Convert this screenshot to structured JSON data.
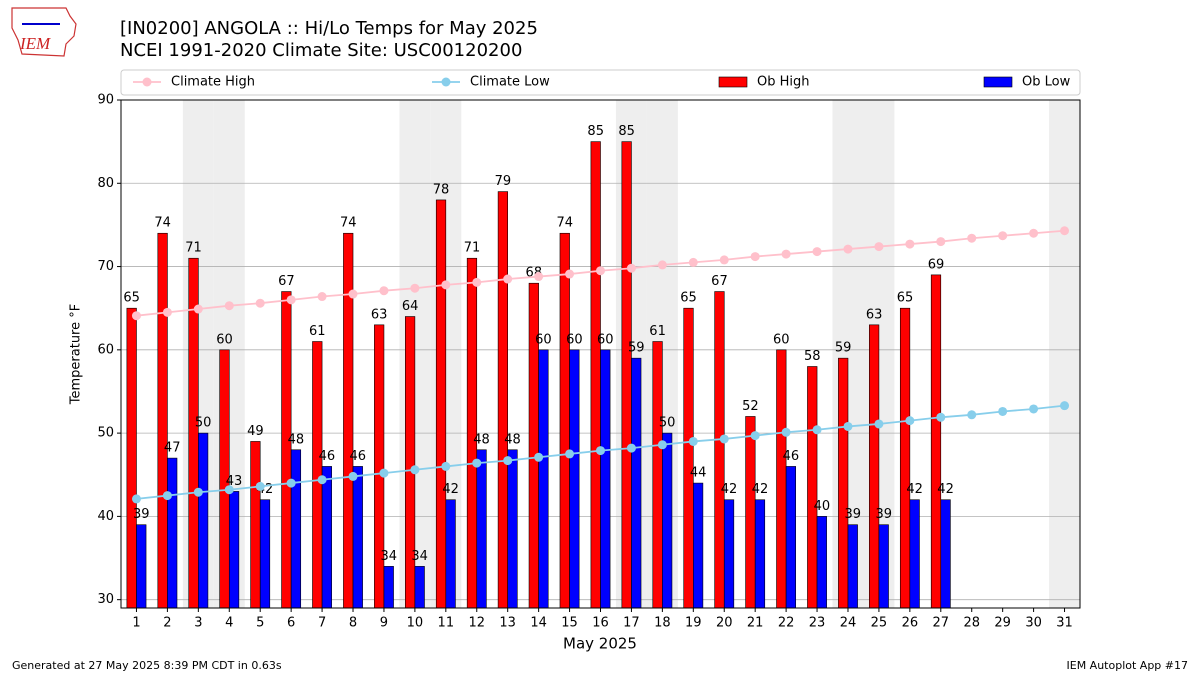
{
  "logo_text": "IEM",
  "footer_left": "Generated at 27 May 2025 8:39 PM CDT in 0.63s",
  "footer_right": "IEM Autoplot App #17",
  "chart_data": {
    "type": "bar",
    "title": "[IN0200] ANGOLA :: Hi/Lo Temps for May 2025",
    "subtitle": "NCEI 1991-2020 Climate Site: USC00120200",
    "x_label": "May 2025",
    "y_label": "Temperature °F",
    "x": [
      1,
      2,
      3,
      4,
      5,
      6,
      7,
      8,
      9,
      10,
      11,
      12,
      13,
      14,
      15,
      16,
      17,
      18,
      19,
      20,
      21,
      22,
      23,
      24,
      25,
      26,
      27,
      28,
      29,
      30,
      31
    ],
    "xlim": [
      0.5,
      31.5
    ],
    "xticks": [
      1,
      2,
      3,
      4,
      5,
      6,
      7,
      8,
      9,
      10,
      11,
      12,
      13,
      14,
      15,
      16,
      17,
      18,
      19,
      20,
      21,
      22,
      23,
      24,
      25,
      26,
      27,
      28,
      29,
      30,
      31
    ],
    "ylim": [
      29,
      90
    ],
    "yticks": [
      30,
      40,
      50,
      60,
      70,
      80,
      90
    ],
    "grid": true,
    "shaded_days": [
      3,
      4,
      10,
      11,
      17,
      18,
      24,
      25,
      31
    ],
    "series": [
      {
        "name": "Climate High",
        "type": "line",
        "color": "#ffc0cb",
        "values": [
          64.1,
          64.5,
          64.9,
          65.3,
          65.6,
          66.0,
          66.4,
          66.7,
          67.1,
          67.4,
          67.8,
          68.1,
          68.5,
          68.8,
          69.1,
          69.5,
          69.8,
          70.2,
          70.5,
          70.8,
          71.2,
          71.5,
          71.8,
          72.1,
          72.4,
          72.7,
          73.0,
          73.4,
          73.7,
          74.0,
          74.3
        ]
      },
      {
        "name": "Climate Low",
        "type": "line",
        "color": "#87ceeb",
        "values": [
          42.1,
          42.5,
          42.9,
          43.2,
          43.6,
          44.0,
          44.4,
          44.8,
          45.2,
          45.6,
          46.0,
          46.4,
          46.7,
          47.1,
          47.5,
          47.9,
          48.2,
          48.6,
          49.0,
          49.3,
          49.7,
          50.1,
          50.4,
          50.8,
          51.1,
          51.5,
          51.9,
          52.2,
          52.6,
          52.9,
          53.3
        ]
      },
      {
        "name": "Ob High",
        "type": "bar",
        "color": "#ff0000",
        "values": [
          65,
          74,
          71,
          60,
          49,
          67,
          61,
          74,
          63,
          64,
          78,
          71,
          79,
          68,
          74,
          85,
          85,
          61,
          65,
          67,
          52,
          60,
          58,
          59,
          63,
          65,
          69,
          null,
          null,
          null,
          null
        ]
      },
      {
        "name": "Ob Low",
        "type": "bar",
        "color": "#0000ff",
        "values": [
          39,
          47,
          50,
          43,
          42,
          48,
          46,
          46,
          34,
          34,
          42,
          48,
          48,
          60,
          60,
          60,
          59,
          50,
          44,
          42,
          42,
          46,
          40,
          39,
          39,
          42,
          42,
          null,
          null,
          null,
          null
        ]
      }
    ]
  }
}
